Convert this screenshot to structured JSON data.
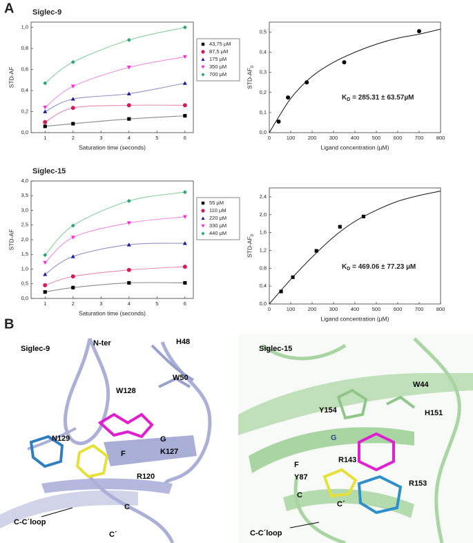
{
  "chart_data": [
    {
      "type": "line",
      "title": "Siglec-9",
      "xlabel": "Saturation time (seconds)",
      "ylabel": "STD-AF",
      "x": [
        1,
        2,
        4,
        6
      ],
      "xlim": [
        0.5,
        6.3
      ],
      "xticks": [
        1,
        2,
        3,
        4,
        5,
        6
      ],
      "ylim": [
        0,
        1.05
      ],
      "yticks": [
        {
          "value": 0,
          "label": "0,0"
        },
        {
          "value": 0.2,
          "label": "0,2"
        },
        {
          "value": 0.4,
          "label": "0,4"
        },
        {
          "value": 0.6,
          "label": "0,6"
        },
        {
          "value": 0.8,
          "label": "0,8"
        },
        {
          "value": 1.0,
          "label": "1,0"
        }
      ],
      "legend": "right",
      "series": [
        {
          "name": "43,75 µM",
          "color": "#000000",
          "line_color": "#8a8a8a",
          "marker": "square",
          "values": [
            0.06,
            0.085,
            0.13,
            0.16
          ]
        },
        {
          "name": "87,5 µM",
          "color": "#d6195a",
          "line_color": "#e58aa8",
          "marker": "circle",
          "values": [
            0.1,
            0.235,
            0.26,
            0.26
          ]
        },
        {
          "name": "175 µM",
          "color": "#1b1b9e",
          "line_color": "#8f8fc8",
          "marker": "triangle-up",
          "values": [
            0.2,
            0.32,
            0.37,
            0.47
          ]
        },
        {
          "name": "350 µM",
          "color": "#ff2ad4",
          "line_color": "#f08ae0",
          "marker": "triangle-down",
          "values": [
            0.24,
            0.44,
            0.62,
            0.72
          ]
        },
        {
          "name": "700 µM",
          "color": "#2aa37a",
          "line_color": "#86d09a",
          "marker": "diamond",
          "values": [
            0.47,
            0.67,
            0.88,
            1.0
          ]
        }
      ]
    },
    {
      "type": "scatter",
      "xlabel": "Ligand concentration (µM)",
      "ylabel": "STD-AF",
      "ylabel_sub": "0",
      "x": [
        43.75,
        87.5,
        175,
        350,
        700
      ],
      "values": [
        0.055,
        0.175,
        0.25,
        0.35,
        0.505
      ],
      "color": "#000000",
      "marker": "circle",
      "fit": {
        "x": [
          0,
          100,
          200,
          300,
          400,
          500,
          600,
          700,
          800
        ],
        "values": [
          0,
          0.17,
          0.28,
          0.35,
          0.4,
          0.44,
          0.47,
          0.49,
          0.515
        ]
      },
      "xlim": [
        0,
        800
      ],
      "xticks": [
        0,
        100,
        200,
        300,
        400,
        500,
        600,
        700,
        800
      ],
      "ylim": [
        0,
        0.55
      ],
      "yticks": [
        {
          "value": 0,
          "label": "0,0"
        },
        {
          "value": 0.1,
          "label": "0,1"
        },
        {
          "value": 0.2,
          "label": "0,2"
        },
        {
          "value": 0.3,
          "label": "0,3"
        },
        {
          "value": 0.4,
          "label": "0,4"
        },
        {
          "value": 0.5,
          "label": "0,5"
        }
      ],
      "annotation": {
        "main": "K",
        "sub": "D",
        "rest": " = 285.31 ±  63.57µM"
      }
    },
    {
      "type": "line",
      "title": "Siglec-15",
      "xlabel": "Saturation time (seconds)",
      "ylabel": "STD-AF",
      "x": [
        1,
        2,
        4,
        6
      ],
      "xlim": [
        0.5,
        6.3
      ],
      "xticks": [
        1,
        2,
        3,
        4,
        5,
        6
      ],
      "ylim": [
        0,
        4.0
      ],
      "yticks": [
        {
          "value": 0,
          "label": "0,0"
        },
        {
          "value": 0.5,
          "label": "0,5"
        },
        {
          "value": 1.0,
          "label": "1,0"
        },
        {
          "value": 1.5,
          "label": "1,5"
        },
        {
          "value": 2.0,
          "label": "2,0"
        },
        {
          "value": 2.5,
          "label": "2,5"
        },
        {
          "value": 3.0,
          "label": "3,0"
        },
        {
          "value": 3.5,
          "label": "3,5"
        },
        {
          "value": 4.0,
          "label": "4,0"
        }
      ],
      "legend": "right",
      "series": [
        {
          "name": "55 µM",
          "color": "#000000",
          "line_color": "#8a8a8a",
          "marker": "square",
          "values": [
            0.22,
            0.37,
            0.53,
            0.53
          ]
        },
        {
          "name": "110 µM",
          "color": "#d6195a",
          "line_color": "#e58aa8",
          "marker": "circle",
          "values": [
            0.45,
            0.75,
            0.97,
            1.08
          ]
        },
        {
          "name": "220 µM",
          "color": "#1b1b9e",
          "line_color": "#8f8fc8",
          "marker": "triangle-up",
          "values": [
            0.82,
            1.43,
            1.83,
            1.88
          ]
        },
        {
          "name": "330 µM",
          "color": "#ff2ad4",
          "line_color": "#f08ae0",
          "marker": "triangle-down",
          "values": [
            1.22,
            2.08,
            2.57,
            2.78
          ]
        },
        {
          "name": "440 µM",
          "color": "#2aa37a",
          "line_color": "#86d09a",
          "marker": "diamond",
          "values": [
            1.48,
            2.48,
            3.32,
            3.62
          ]
        }
      ]
    },
    {
      "type": "scatter",
      "xlabel": "Ligand concentration (µM)",
      "ylabel": "STD-AF",
      "ylabel_sub": "0",
      "x": [
        55,
        110,
        220,
        330,
        440
      ],
      "values": [
        0.28,
        0.6,
        1.19,
        1.73,
        1.96
      ],
      "color": "#000000",
      "marker": "square",
      "fit": {
        "x": [
          0,
          100,
          200,
          300,
          400,
          500,
          600,
          700,
          800
        ],
        "values": [
          0,
          0.55,
          1.05,
          1.5,
          1.85,
          2.1,
          2.3,
          2.43,
          2.53
        ]
      },
      "xlim": [
        0,
        800
      ],
      "xticks": [
        0,
        100,
        200,
        300,
        400,
        500,
        600,
        700,
        800
      ],
      "ylim": [
        0,
        2.6
      ],
      "yticks": [
        {
          "value": 0,
          "label": "0,0"
        },
        {
          "value": 0.4,
          "label": "0,4"
        },
        {
          "value": 0.8,
          "label": "0,8"
        },
        {
          "value": 1.2,
          "label": "1,2"
        },
        {
          "value": 1.6,
          "label": "1,6"
        },
        {
          "value": 2.0,
          "label": "2,0"
        },
        {
          "value": 2.4,
          "label": "2,4"
        }
      ],
      "annotation": {
        "main": "K",
        "sub": "D",
        "rest": " = 469.06 ± 77.23 µM"
      }
    }
  ],
  "panels": {
    "a": "A",
    "b": "B"
  },
  "structure_left": {
    "title": "Siglec-9",
    "labels": [
      "N-ter",
      "H48",
      "W50",
      "W128",
      "N129",
      "G",
      "K127",
      "F",
      "R120",
      "C",
      "C-C´loop",
      "C´"
    ]
  },
  "structure_right": {
    "title": "Siglec-15",
    "labels": [
      "W44",
      "Y154",
      "H151",
      "G",
      "R143",
      "F",
      "Y87",
      "R153",
      "C",
      "C´",
      "C-C´loop"
    ]
  }
}
